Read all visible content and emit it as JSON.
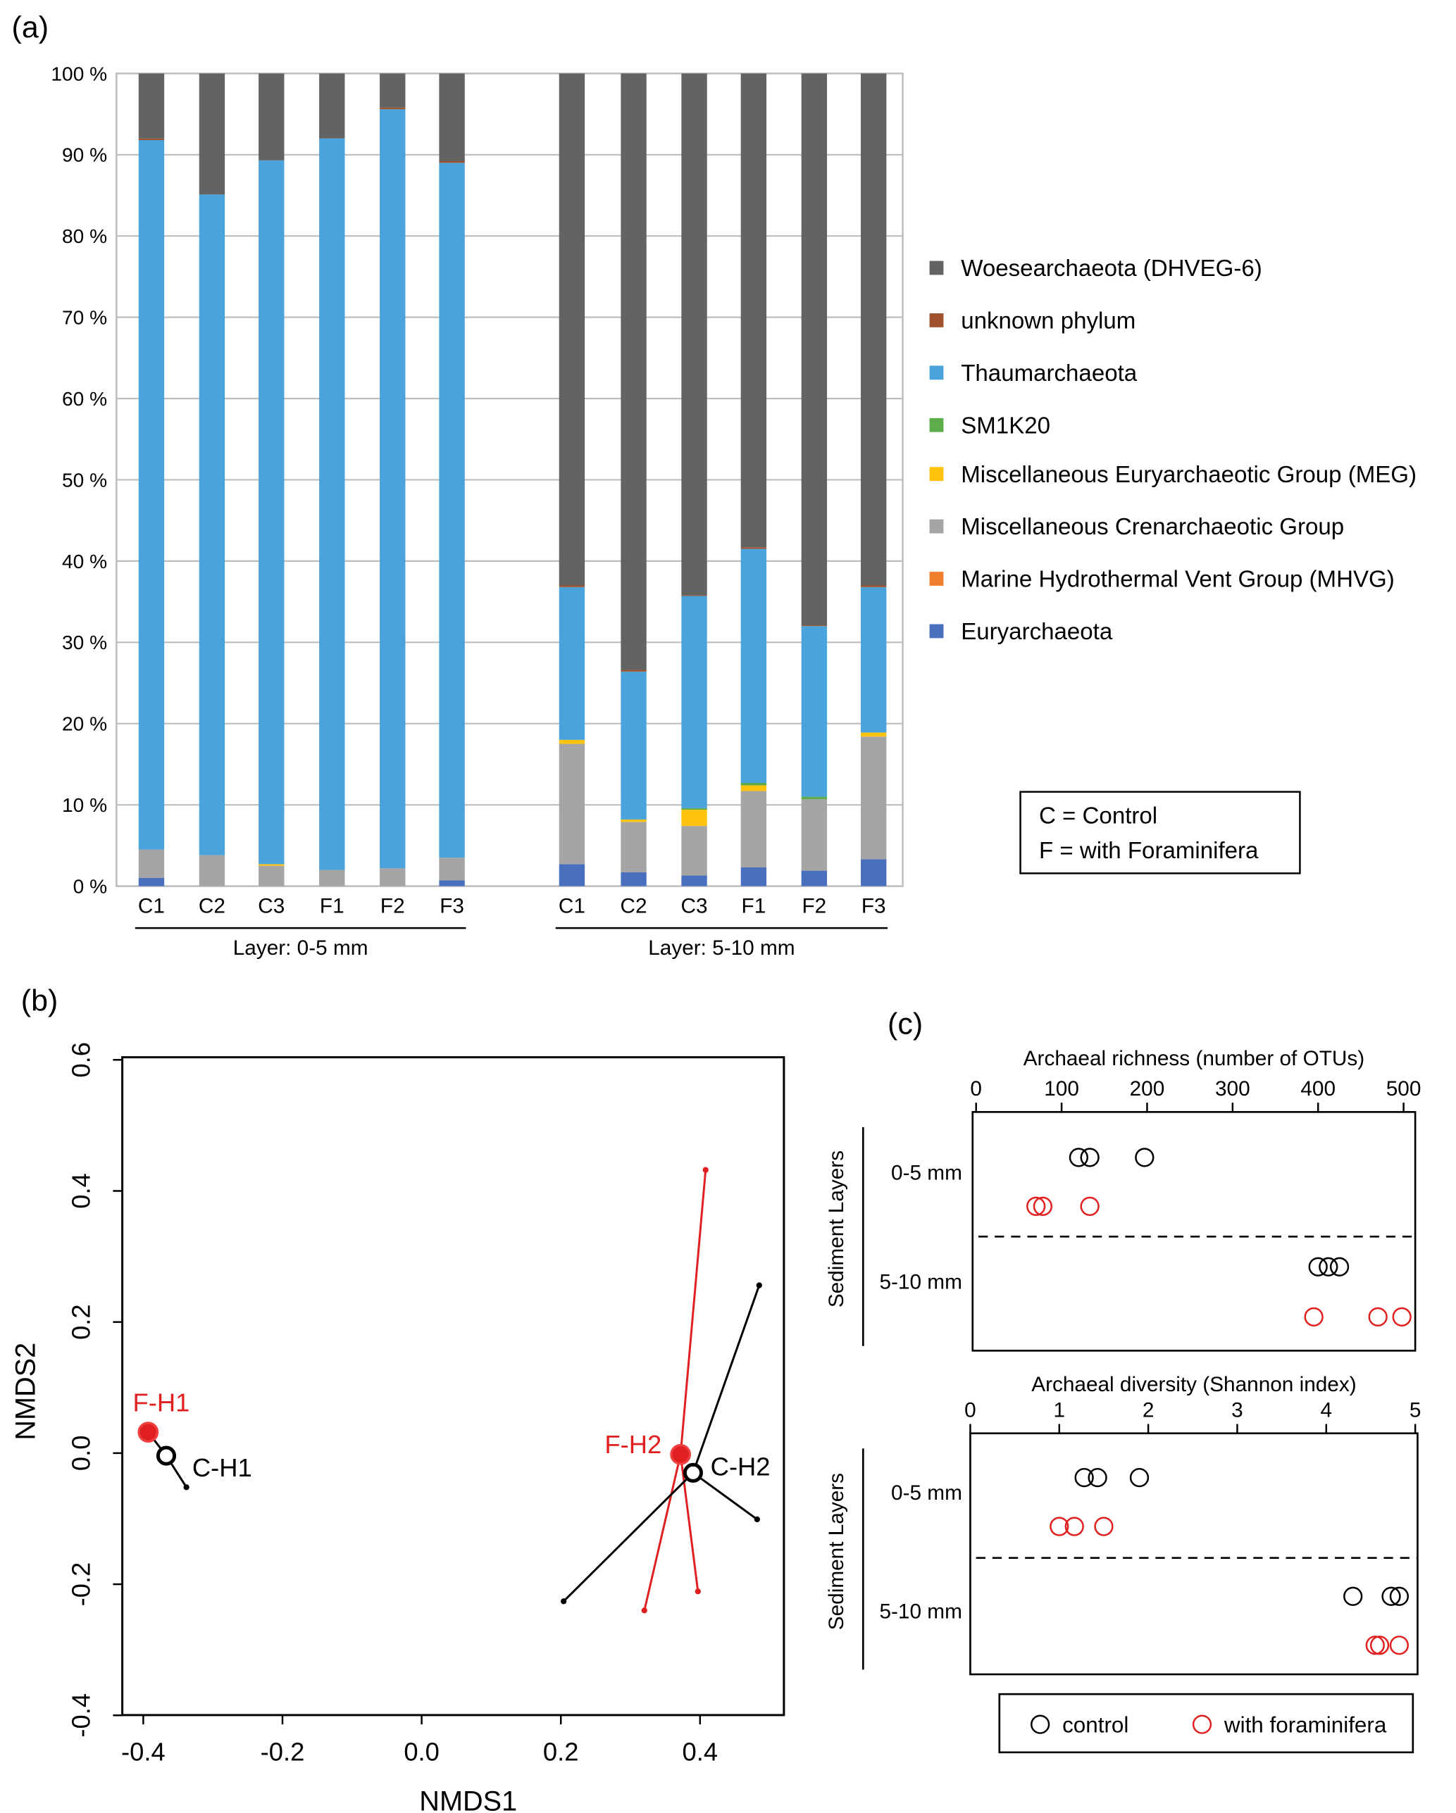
{
  "panel_labels": {
    "a": "(a)",
    "b": "(b)",
    "c": "(c)"
  },
  "chart_data": [
    {
      "type": "bar",
      "stacked": true,
      "title": "",
      "ylabel": "",
      "ylim": [
        0,
        100
      ],
      "yticks": [
        "0 %",
        "10 %",
        "20 %",
        "30 %",
        "40 %",
        "50 %",
        "60 %",
        "70 %",
        "80 %",
        "90 %",
        "100 %"
      ],
      "grid": true,
      "groups": [
        {
          "label": "Layer: 0-5 mm",
          "categories": [
            "C1",
            "C2",
            "C3",
            "F1",
            "F2",
            "F3"
          ]
        },
        {
          "label": "Layer: 5-10 mm",
          "categories": [
            "C1",
            "C2",
            "C3",
            "F1",
            "F2",
            "F3"
          ]
        }
      ],
      "legend_placement": "right",
      "series": [
        {
          "name": "Euryarchaeota",
          "color": "#4A6FBF",
          "values": [
            1.0,
            0,
            0,
            0,
            0,
            0.7,
            2.7,
            1.7,
            1.3,
            2.3,
            1.9,
            3.3
          ]
        },
        {
          "name": "Marine Hydrothermal Vent Group (MHVG)",
          "color": "#F07F2D",
          "values": [
            0,
            0,
            0,
            0,
            0,
            0,
            0,
            0,
            0,
            0,
            0,
            0
          ]
        },
        {
          "name": "Miscellaneous Crenarchaeotic Group",
          "color": "#A5A5A5",
          "values": [
            3.5,
            3.8,
            2.5,
            2.0,
            2.2,
            2.8,
            14.8,
            6.2,
            6.1,
            9.4,
            8.8,
            15.1
          ]
        },
        {
          "name": "Miscellaneous Euryarchaeotic Group (MEG)",
          "color": "#FFC20E",
          "values": [
            0,
            0,
            0.2,
            0,
            0,
            0,
            0.5,
            0.3,
            2.0,
            0.7,
            0,
            0.5
          ]
        },
        {
          "name": "SM1K20",
          "color": "#5DAE4B",
          "values": [
            0,
            0,
            0,
            0,
            0,
            0,
            0,
            0,
            0.2,
            0.3,
            0.3,
            0
          ]
        },
        {
          "name": "Thaumarchaeota",
          "color": "#4AA3DB",
          "values": [
            87.3,
            81.3,
            86.6,
            90.0,
            93.4,
            85.5,
            18.8,
            18.2,
            26.1,
            28.8,
            21.0,
            17.9
          ]
        },
        {
          "name": "unknown phylum",
          "color": "#A0522D",
          "values": [
            0.2,
            0,
            0,
            0,
            0.2,
            0.2,
            0.2,
            0.2,
            0.1,
            0.2,
            0.1,
            0.2
          ]
        },
        {
          "name": "Woesearchaeota (DHVEG-6)",
          "color": "#626463",
          "values": [
            8.0,
            14.9,
            10.7,
            8.0,
            4.2,
            10.8,
            63.0,
            73.4,
            64.2,
            58.3,
            67.9,
            63.0
          ]
        }
      ],
      "annotation": [
        "C = Control",
        "F = with Foraminifera"
      ]
    },
    {
      "type": "scatter",
      "xlabel": "NMDS1",
      "ylabel": "NMDS2",
      "xlim": [
        -0.43,
        0.52
      ],
      "ylim": [
        -0.4,
        0.6
      ],
      "xticks": [
        "-0.4",
        "-0.2",
        "0.0",
        "0.2",
        "0.4"
      ],
      "xtick_values": [
        -0.4,
        -0.2,
        0.0,
        0.2,
        0.4
      ],
      "yticks": [
        "-0.4",
        "-0.2",
        "0.0",
        "0.2",
        "0.4",
        "0.6"
      ],
      "ytick_values": [
        -0.4,
        -0.2,
        0.0,
        0.2,
        0.4,
        0.6
      ],
      "groups": [
        {
          "label": "F-H1",
          "color": "#E02020",
          "filled": true,
          "centroid": [
            -0.393,
            0.032
          ],
          "points": []
        },
        {
          "label": "C-H1",
          "color": "#000000",
          "filled": false,
          "centroid": [
            -0.367,
            -0.004
          ],
          "points": [
            [
              -0.338,
              -0.052
            ]
          ]
        },
        {
          "label": "F-H2",
          "color": "#E02020",
          "filled": true,
          "centroid": [
            0.372,
            -0.002
          ],
          "points": [
            [
              0.408,
              0.432
            ],
            [
              0.397,
              -0.211
            ],
            [
              0.32,
              -0.24
            ]
          ]
        },
        {
          "label": "C-H2",
          "color": "#000000",
          "filled": false,
          "centroid": [
            0.39,
            -0.03
          ],
          "points": [
            [
              0.485,
              0.256
            ],
            [
              0.482,
              -0.101
            ],
            [
              0.204,
              -0.226
            ]
          ]
        }
      ]
    },
    {
      "type": "scatter",
      "title": "Archaeal richness (number of OTUs)",
      "xlim": [
        0,
        500
      ],
      "xticks": [
        "0",
        "100",
        "200",
        "300",
        "400",
        "500"
      ],
      "xtick_values": [
        0,
        100,
        200,
        300,
        400,
        500
      ],
      "ylabel": "Sediment Layers",
      "rows": [
        "0-5 mm",
        "5-10 mm"
      ],
      "series": [
        {
          "name": "control",
          "color": "#000000",
          "layer_0_5": [
            120,
            133,
            197
          ],
          "layer_5_10": [
            400,
            412,
            425
          ]
        },
        {
          "name": "with foraminifera",
          "color": "#E02020",
          "layer_0_5": [
            70,
            78,
            133
          ],
          "layer_5_10": [
            395,
            470,
            498
          ]
        }
      ]
    },
    {
      "type": "scatter",
      "title": "Archaeal diversity (Shannon index)",
      "xlim": [
        0,
        5
      ],
      "xticks": [
        "0",
        "1",
        "2",
        "3",
        "4",
        "5"
      ],
      "xtick_values": [
        0,
        1,
        2,
        3,
        4,
        5
      ],
      "ylabel": "Sediment Layers",
      "rows": [
        "0-5 mm",
        "5-10 mm"
      ],
      "series": [
        {
          "name": "control",
          "color": "#000000",
          "layer_0_5": [
            1.28,
            1.43,
            1.9
          ],
          "layer_5_10": [
            4.3,
            4.73,
            4.82
          ]
        },
        {
          "name": "with foraminifera",
          "color": "#E02020",
          "layer_0_5": [
            1.0,
            1.17,
            1.5
          ],
          "layer_5_10": [
            4.55,
            4.6,
            4.82
          ]
        }
      ]
    }
  ],
  "legend_c": [
    "control",
    "with foraminifera"
  ]
}
